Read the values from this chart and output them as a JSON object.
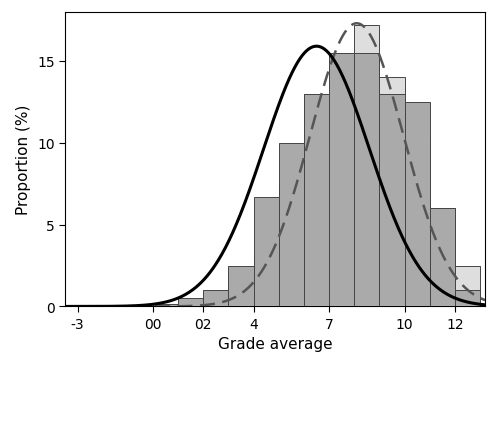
{
  "xlabel": "Grade average",
  "ylabel": "Proportion (%)",
  "xticks": [
    -3,
    0,
    2,
    4,
    7,
    10,
    12
  ],
  "xticklabels": [
    "-3",
    "00",
    "02",
    "4",
    "7",
    "10",
    "12"
  ],
  "ylim": [
    0,
    18
  ],
  "xlim": [
    -3.5,
    13.2
  ],
  "ihc_bar_edges": [
    0,
    1,
    2,
    3,
    4,
    5,
    6,
    7,
    8,
    9,
    10,
    11,
    12
  ],
  "ihc_heights": [
    0.15,
    0.5,
    1.0,
    2.5,
    6.7,
    10.0,
    13.0,
    15.5,
    15.5,
    13.0,
    12.5,
    6.0,
    1.0
  ],
  "ihc_color": "#aaaaaa",
  "ihc_edgecolor": "#444444",
  "other_bar_edges": [
    0,
    1,
    2,
    3,
    4,
    5,
    6,
    7,
    8,
    9,
    10,
    11,
    12
  ],
  "other_heights": [
    0.1,
    0.15,
    0.3,
    1.0,
    3.0,
    7.5,
    13.0,
    15.5,
    17.2,
    14.0,
    10.2,
    6.0,
    2.5
  ],
  "other_color": "#dedede",
  "other_edgecolor": "#444444",
  "ihc_kde_mean": 6.5,
  "ihc_kde_std": 2.1,
  "ihc_kde_peak": 15.9,
  "other_kde_mean": 8.1,
  "other_kde_std": 1.85,
  "other_kde_peak": 17.3,
  "legend_ihc_color": "#aaaaaa",
  "legend_other_color": "#dedede",
  "legend_edge_color": "#444444"
}
